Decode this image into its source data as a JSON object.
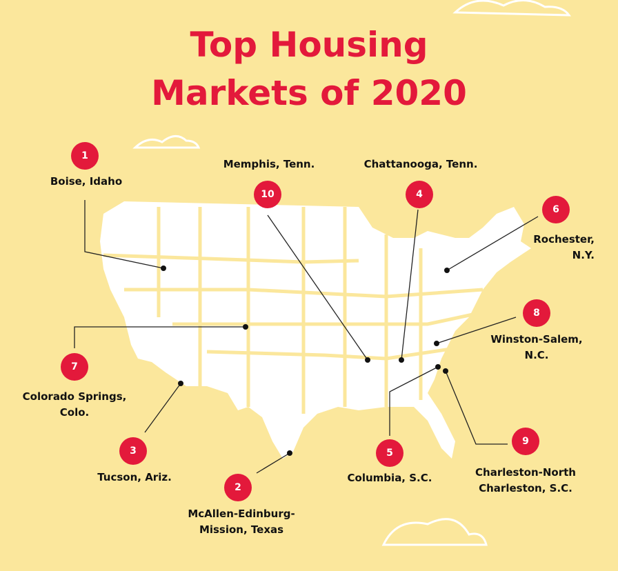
{
  "title": {
    "lines": [
      "Top Housing",
      "Markets of 2020"
    ]
  },
  "markers": [
    {
      "rank": 1,
      "label_lines": [
        "Boise, Idaho"
      ]
    },
    {
      "rank": 2,
      "label_lines": [
        "McAllen-Edinburg-",
        "Mission, Texas"
      ]
    },
    {
      "rank": 3,
      "label_lines": [
        "Tucson, Ariz."
      ]
    },
    {
      "rank": 4,
      "label_lines": [
        "Chattanooga, Tenn."
      ]
    },
    {
      "rank": 5,
      "label_lines": [
        "Columbia, S.C."
      ]
    },
    {
      "rank": 6,
      "label_lines": [
        "Rochester,",
        "N.Y."
      ]
    },
    {
      "rank": 7,
      "label_lines": [
        "Colorado Springs,",
        "Colo."
      ]
    },
    {
      "rank": 8,
      "label_lines": [
        "Winston-Salem,",
        "N.C."
      ]
    },
    {
      "rank": 9,
      "label_lines": [
        "Charleston-North",
        "Charleston, S.C."
      ]
    },
    {
      "rank": 10,
      "label_lines": [
        "Memphis, Tenn."
      ]
    }
  ]
}
